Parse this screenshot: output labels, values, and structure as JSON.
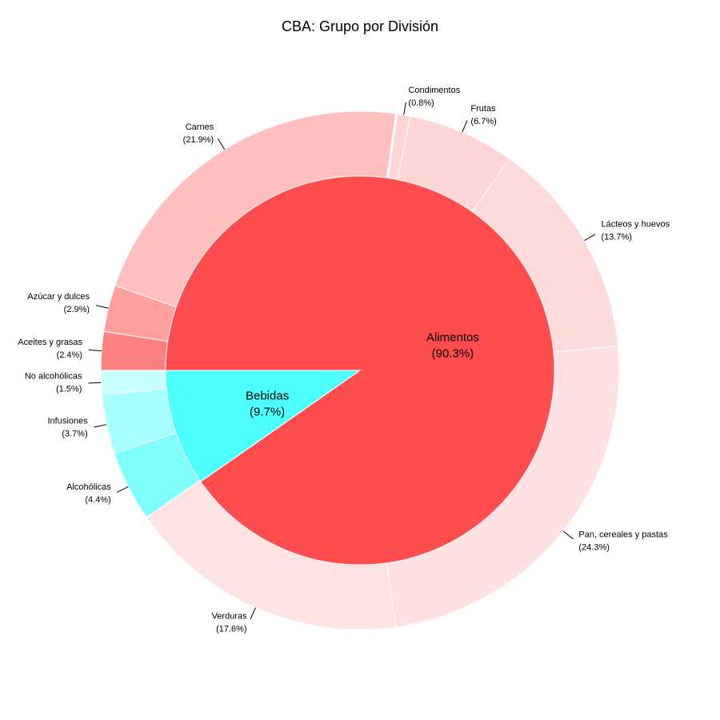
{
  "chart_data": {
    "type": "pie",
    "variant": "sunburst",
    "title": "CBA: Grupo por División",
    "inner": [
      {
        "name": "Alimentos",
        "percent_label": "(90.3%)",
        "value": 90.3,
        "color": "#FF4D4F"
      },
      {
        "name": "Bebidas",
        "percent_label": "(9.7%)",
        "value": 9.7,
        "color": "#4DFFFF"
      }
    ],
    "outer": [
      {
        "name": "Condimentos",
        "percent_label": "(0.8%)",
        "value": 0.8,
        "group": "Alimentos",
        "color": "#FFD4D4"
      },
      {
        "name": "Frutas",
        "percent_label": "(6.7%)",
        "value": 6.7,
        "group": "Alimentos",
        "color": "#FFD6D6"
      },
      {
        "name": "Lácteos y huevos",
        "percent_label": "(13.7%)",
        "value": 13.7,
        "group": "Alimentos",
        "color": "#FFDADA"
      },
      {
        "name": "Pan, cereales y pastas",
        "percent_label": "(24.3%)",
        "value": 24.3,
        "group": "Alimentos",
        "color": "#FFE1E1"
      },
      {
        "name": "Verduras",
        "percent_label": "(17.6%)",
        "value": 17.6,
        "group": "Alimentos",
        "color": "#FFE3E3"
      },
      {
        "name": "Alcohólicas",
        "percent_label": "(4.4%)",
        "value": 4.4,
        "group": "Bebidas",
        "color": "#80FFFF"
      },
      {
        "name": "Infusiones",
        "percent_label": "(3.7%)",
        "value": 3.7,
        "group": "Bebidas",
        "color": "#A8FFFF"
      },
      {
        "name": "No alcohólicas",
        "percent_label": "(1.5%)",
        "value": 1.5,
        "group": "Bebidas",
        "color": "#C8FFFF"
      },
      {
        "name": "Aceites y grasas",
        "percent_label": "(2.4%)",
        "value": 2.4,
        "group": "Alimentos",
        "color": "#FF8080"
      },
      {
        "name": "Azúcar y dulces",
        "percent_label": "(2.9%)",
        "value": 2.9,
        "group": "Alimentos",
        "color": "#FF9E9E"
      },
      {
        "name": "Carnes",
        "percent_label": "(21.9%)",
        "value": 21.9,
        "group": "Alimentos",
        "color": "#FFBFBF"
      }
    ]
  }
}
